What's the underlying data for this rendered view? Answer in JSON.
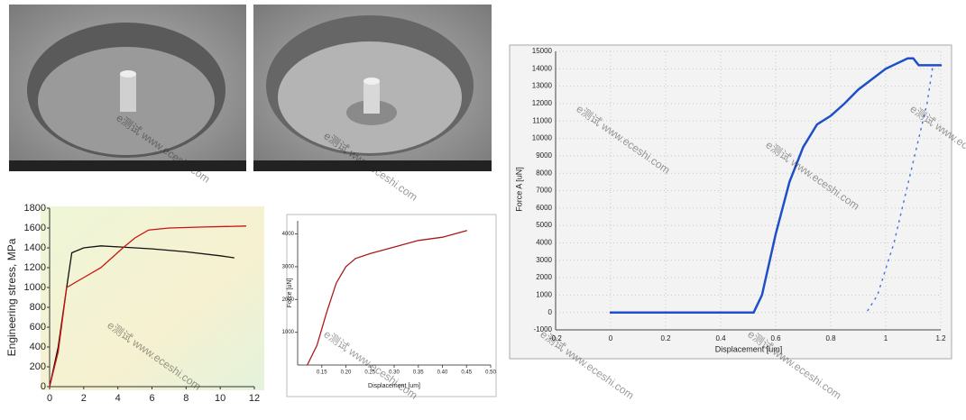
{
  "chart_data": [
    {
      "type": "line",
      "ylabel": "Engineering stress, MPa",
      "xlim": [
        0,
        12
      ],
      "xticks": [
        0,
        2,
        4,
        6,
        8,
        10,
        12
      ],
      "ylim": [
        0,
        1800
      ],
      "yticks": [
        0,
        200,
        400,
        600,
        800,
        1000,
        1200,
        1400,
        1600,
        1800
      ],
      "grid": false,
      "series": [
        {
          "color": "#111111",
          "x": [
            0,
            0.5,
            1,
            1.3,
            2,
            3,
            4,
            6,
            8,
            10,
            10.8
          ],
          "values": [
            0,
            400,
            1000,
            1350,
            1400,
            1420,
            1410,
            1390,
            1360,
            1320,
            1300
          ]
        },
        {
          "color": "#cc1111",
          "x": [
            0,
            0.5,
            1,
            2,
            3,
            4.3,
            5,
            5.8,
            7,
            9,
            11.5
          ],
          "values": [
            0,
            350,
            1000,
            1100,
            1200,
            1400,
            1500,
            1580,
            1600,
            1610,
            1620
          ]
        }
      ]
    },
    {
      "type": "line",
      "xlabel": "Displacement [um]",
      "ylabel": "Force [uN]",
      "xlim": [
        0.1,
        0.5
      ],
      "xticks": [
        0.15,
        {
          "value": 0.2,
          "label": "0.20"
        },
        0.25,
        {
          "value": 0.3,
          "label": "0.30"
        },
        0.35,
        {
          "value": 0.4,
          "label": "0.40"
        },
        0.45,
        {
          "value": 0.5,
          "label": "0.50"
        }
      ],
      "ylim": [
        0,
        4400
      ],
      "yticks": [
        1000,
        2000,
        3000,
        4000
      ],
      "grid": false,
      "series": [
        {
          "color": "#aa1a1a",
          "x": [
            0.12,
            0.14,
            0.16,
            0.18,
            0.2,
            0.22,
            0.25,
            0.3,
            0.35,
            0.4,
            0.45
          ],
          "values": [
            0,
            600,
            1600,
            2500,
            3000,
            3250,
            3400,
            3600,
            3800,
            3900,
            4100
          ]
        }
      ]
    },
    {
      "type": "line",
      "xlabel": "Displacement [um]",
      "ylabel": "Force A [uN]",
      "xlim": [
        -0.2,
        1.2
      ],
      "xticks": [
        -0.2,
        0,
        0.2,
        0.4,
        0.6,
        0.8,
        1,
        1.2
      ],
      "ylim": [
        -1000,
        15000
      ],
      "yticks": [
        -1000,
        0,
        1000,
        2000,
        3000,
        4000,
        5000,
        6000,
        7000,
        8000,
        9000,
        10000,
        11000,
        12000,
        13000,
        14000,
        15000
      ],
      "grid": true,
      "series": [
        {
          "color": "#1f4fc8",
          "line_style": "solid",
          "x": [
            0,
            0.52,
            0.55,
            0.6,
            0.65,
            0.7,
            0.75,
            0.8,
            0.85,
            0.9,
            1,
            1.08,
            1.1,
            1.12,
            1.2
          ],
          "values": [
            0,
            0,
            1000,
            4500,
            7500,
            9500,
            10800,
            11300,
            12000,
            12800,
            14000,
            14600,
            14600,
            14200,
            14200
          ]
        },
        {
          "color": "#4a78d8",
          "line_style": "dotted",
          "x": [
            1.17,
            1.15,
            1.12,
            1.09,
            1.06,
            1.03,
            1,
            0.97,
            0.93
          ],
          "values": [
            14000,
            12000,
            10000,
            8000,
            6000,
            4000,
            2500,
            1000,
            0
          ]
        }
      ]
    }
  ],
  "watermark": "e测试 www.eceshi.com"
}
